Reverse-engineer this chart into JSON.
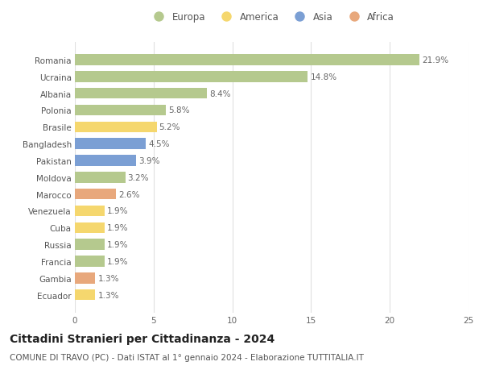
{
  "countries": [
    "Romania",
    "Ucraina",
    "Albania",
    "Polonia",
    "Brasile",
    "Bangladesh",
    "Pakistan",
    "Moldova",
    "Marocco",
    "Venezuela",
    "Cuba",
    "Russia",
    "Francia",
    "Gambia",
    "Ecuador"
  ],
  "values": [
    21.9,
    14.8,
    8.4,
    5.8,
    5.2,
    4.5,
    3.9,
    3.2,
    2.6,
    1.9,
    1.9,
    1.9,
    1.9,
    1.3,
    1.3
  ],
  "continents": [
    "Europa",
    "Europa",
    "Europa",
    "Europa",
    "America",
    "Asia",
    "Asia",
    "Europa",
    "Africa",
    "America",
    "America",
    "Europa",
    "Europa",
    "Africa",
    "America"
  ],
  "continent_colors": {
    "Europa": "#b5c98e",
    "America": "#f5d76e",
    "Asia": "#7b9fd4",
    "Africa": "#e8a87c"
  },
  "legend_order": [
    "Europa",
    "America",
    "Asia",
    "Africa"
  ],
  "xlim": [
    0,
    25
  ],
  "xticks": [
    0,
    5,
    10,
    15,
    20,
    25
  ],
  "title": "Cittadini Stranieri per Cittadinanza - 2024",
  "subtitle": "COMUNE DI TRAVO (PC) - Dati ISTAT al 1° gennaio 2024 - Elaborazione TUTTITALIA.IT",
  "title_fontsize": 10,
  "subtitle_fontsize": 7.5,
  "label_fontsize": 7.5,
  "tick_fontsize": 7.5,
  "bar_height": 0.65,
  "bg_color": "#ffffff",
  "grid_color": "#e0e0e0"
}
